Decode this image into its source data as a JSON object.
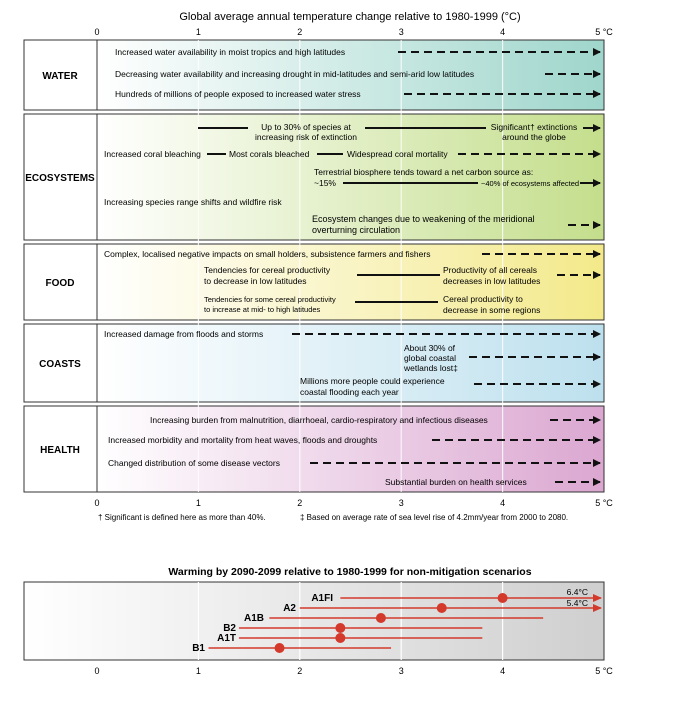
{
  "top_title": "Global average annual temperature change relative to 1980-1999 (°C)",
  "axis_ticks": [
    "0",
    "1",
    "2",
    "3",
    "4",
    "5 °C"
  ],
  "colors": {
    "water": "#cfece6",
    "ecosystems": "#dbe9b6",
    "food": "#f7f2b8",
    "coasts": "#d6ecf4",
    "health": "#e8c9e1",
    "arrow": "#111111",
    "scenario_line": "#d33a2c"
  },
  "sections": [
    {
      "label": "WATER",
      "rows": [
        {
          "text": "Increased water availability in moist tropics and high latitudes",
          "start": 1.0,
          "solid_end": 1.0
        },
        {
          "text": "Decreasing water availability and increasing drought in mid-latitudes and semi-arid low latitudes",
          "start": 0.0,
          "solid_end": 0.0
        },
        {
          "text": "Hundreds of millions of people exposed to increased water stress",
          "start": 0.0,
          "solid_end": 0.0
        }
      ]
    },
    {
      "label": "ECOSYSTEMS",
      "notes": [
        {
          "lines": [
            "Up to 30% of species at",
            "increasing risk of extinction"
          ]
        },
        {
          "lines": [
            "Significant† extinctions",
            "around the globe"
          ]
        },
        {
          "lines": [
            "Increased coral bleaching"
          ]
        },
        {
          "lines": [
            "Most corals bleached"
          ]
        },
        {
          "lines": [
            "Widespread coral mortality"
          ]
        },
        {
          "lines": [
            "Terrestrial biosphere tends toward a net carbon source as:"
          ]
        },
        {
          "lines": [
            "~15%"
          ]
        },
        {
          "lines": [
            "~40% of ecosystems affected"
          ]
        },
        {
          "lines": [
            "Increasing species range shifts and wildfire risk"
          ]
        },
        {
          "lines": [
            "Ecosystem changes due to weakening of the meridional",
            "overturning circulation"
          ]
        }
      ]
    },
    {
      "label": "FOOD",
      "notes": [
        {
          "lines": [
            "Complex, localised negative impacts on small holders, subsistence farmers and fishers"
          ]
        },
        {
          "lines": [
            "Tendencies for cereal productivity",
            "to decrease in low latitudes"
          ]
        },
        {
          "lines": [
            "Productivity of all cereals",
            "decreases in low latitudes"
          ]
        },
        {
          "lines": [
            "Tendencies for some cereal productivity",
            "to increase at mid- to high latitudes"
          ]
        },
        {
          "lines": [
            "Cereal productivity to",
            "decrease in some regions"
          ]
        }
      ]
    },
    {
      "label": "COASTS",
      "notes": [
        {
          "lines": [
            "Increased damage from floods and storms"
          ]
        },
        {
          "lines": [
            "About 30% of",
            "global coastal",
            "wetlands lost‡"
          ]
        },
        {
          "lines": [
            "Millions more people could experience",
            "coastal flooding each year"
          ]
        }
      ]
    },
    {
      "label": "HEALTH",
      "notes": [
        {
          "lines": [
            "Increasing burden from malnutrition, diarrhoeal, cardio-respiratory and infectious diseases"
          ]
        },
        {
          "lines": [
            "Increased morbidity and mortality from heat waves, floods and droughts"
          ]
        },
        {
          "lines": [
            "Changed distribution of some disease vectors"
          ]
        },
        {
          "lines": [
            "Substantial burden on health services"
          ]
        }
      ]
    }
  ],
  "footnote_1": "† Significant is defined here as more than 40%.",
  "footnote_2": "‡ Based on average rate of sea level rise of 4.2mm/year from 2000 to 2080.",
  "chart_data": {
    "type": "scatter",
    "title": "Warming by 2090-2099 relative to 1980-1999 for non-mitigation scenarios",
    "xlabel": "",
    "ylabel": "",
    "xlim": [
      0,
      5
    ],
    "x_ticks": [
      "0",
      "1",
      "2",
      "3",
      "4",
      "5 °C"
    ],
    "series": [
      {
        "name": "A1FI",
        "best": 4.0,
        "low": 2.4,
        "high": 6.4
      },
      {
        "name": "A2",
        "best": 3.4,
        "low": 2.0,
        "high": 5.4
      },
      {
        "name": "A1B",
        "best": 2.8,
        "low": 1.7,
        "high": 4.4
      },
      {
        "name": "B2",
        "best": 2.4,
        "low": 1.4,
        "high": 3.8
      },
      {
        "name": "A1T",
        "best": 2.4,
        "low": 1.4,
        "high": 3.8
      },
      {
        "name": "B1",
        "best": 1.8,
        "low": 1.1,
        "high": 2.9
      }
    ],
    "off_scale_labels": [
      "6.4°C",
      "5.4°C"
    ],
    "grid": true
  }
}
